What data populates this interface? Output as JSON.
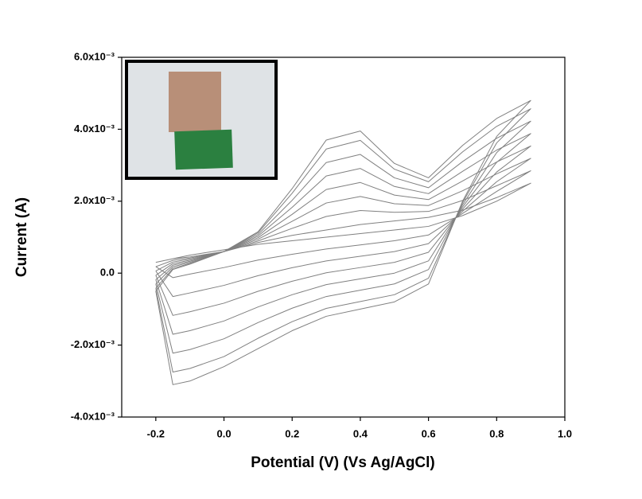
{
  "chart_data": {
    "type": "line",
    "x_label": "Potential (V) (Vs Ag/AgCl)",
    "y_label": "Current (A)",
    "xlim": [
      -0.3,
      1.0
    ],
    "ylim": [
      -0.004,
      0.006
    ],
    "xticks": [
      -0.2,
      {
        "value": 0,
        "label": "0.0"
      },
      0.2,
      0.4,
      0.6,
      0.8,
      {
        "value": 1,
        "label": "1.0"
      }
    ],
    "yticks": [
      {
        "value": -0.004,
        "label": "-4.0x10⁻³"
      },
      {
        "value": -0.002,
        "label": "-2.0x10⁻³"
      },
      {
        "value": 0,
        "label": "0.0"
      },
      {
        "value": 0.002,
        "label": "2.0x10⁻³"
      },
      {
        "value": 0.004,
        "label": "4.0x10⁻³"
      },
      {
        "value": 0.006,
        "label": "6.0x10⁻³"
      }
    ],
    "x": [
      -0.2,
      -0.15,
      -0.1,
      0,
      0.1,
      0.2,
      0.3,
      0.4,
      0.5,
      0.6,
      0.7,
      0.8,
      0.9,
      0.8,
      0.7,
      0.6,
      0.5,
      0.4,
      0.3,
      0.2,
      0.1,
      0,
      -0.1,
      -0.15,
      -0.2
    ],
    "series": [
      {
        "color": "#808080",
        "values": [
          0.0003,
          0.0004,
          0.00045,
          0.0006,
          0.00085,
          0.00105,
          0.0012,
          0.00135,
          0.00145,
          0.00155,
          0.00175,
          0.0021,
          0.0025,
          0.002,
          0.0016,
          0.0013,
          0.0012,
          0.0011,
          0.001,
          0.0009,
          0.0008,
          0.00065,
          0.0005,
          0.0004,
          0.0003
        ]
      },
      {
        "color": "#808080",
        "values": [
          0.00018,
          0.000355,
          0.00042,
          0.0006,
          0.000895,
          0.001245,
          0.001575,
          0.00174,
          0.00169,
          0.001715,
          0.00202,
          0.00243,
          0.002845,
          0.00227,
          0.00166,
          0.00106,
          0.0009,
          0.000785,
          0.00067,
          0.000525,
          0.000365,
          0.000155,
          -2.5e-05,
          -0.000125,
          0.00018
        ]
      },
      {
        "color": "#808080",
        "values": [
          6e-05,
          0.00031,
          0.00039,
          0.0006,
          0.00094,
          0.00144,
          0.00195,
          0.00213,
          0.00193,
          0.00188,
          0.00229,
          0.00276,
          0.00319,
          0.00254,
          0.00172,
          0.00082,
          0.0006,
          0.00047,
          0.00034,
          0.00015,
          -7e-05,
          -0.00034,
          -0.00055,
          -0.00065,
          6e-05
        ]
      },
      {
        "color": "#808080",
        "values": [
          -6e-05,
          0.000265,
          0.00036,
          0.0006,
          0.000985,
          0.001635,
          0.002325,
          0.00252,
          0.00217,
          0.002045,
          0.00256,
          0.00309,
          0.003535,
          0.00281,
          0.00178,
          0.00058,
          0.0003,
          0.000155,
          1e-05,
          -0.000225,
          -0.000505,
          -0.000835,
          -0.001075,
          -0.001175,
          -6e-05
        ]
      },
      {
        "color": "#808080",
        "values": [
          -0.00018,
          0.00022,
          0.00033,
          0.0006,
          0.00103,
          0.00183,
          0.0027,
          0.00291,
          0.00241,
          0.00221,
          0.00283,
          0.00342,
          0.00388,
          0.00308,
          0.00184,
          0.00034,
          0.0,
          -0.00016,
          -0.00032,
          -0.0006,
          -0.00094,
          -0.00133,
          -0.0016,
          -0.0017,
          -0.00018
        ]
      },
      {
        "color": "#808080",
        "values": [
          -0.0003,
          0.000175,
          0.0003,
          0.0006,
          0.001075,
          0.002025,
          0.003075,
          0.0033,
          0.00265,
          0.002375,
          0.0031,
          0.00375,
          0.004225,
          0.00335,
          0.0019,
          0.0001,
          -0.0003,
          -0.000475,
          -0.00065,
          -0.000975,
          -0.001375,
          -0.001825,
          -0.002125,
          -0.002225,
          -0.0003
        ]
      },
      {
        "color": "#808080",
        "values": [
          -0.00042,
          0.00013,
          0.00027,
          0.0006,
          0.00112,
          0.00222,
          0.00345,
          0.00369,
          0.00289,
          0.00254,
          0.00337,
          0.00408,
          0.00457,
          0.00362,
          0.00196,
          -0.00014,
          -0.0006,
          -0.00079,
          -0.00098,
          -0.00135,
          -0.00181,
          -0.00232,
          -0.00265,
          -0.00275,
          -0.00042
        ]
      },
      {
        "color": "#808080",
        "values": [
          -0.0005,
          0.0001,
          0.00025,
          0.0006,
          0.00115,
          0.00235,
          0.0037,
          0.00395,
          0.00305,
          0.00265,
          0.00355,
          0.0043,
          0.0048,
          0.0038,
          0.002,
          -0.0003,
          -0.0008,
          -0.001,
          -0.0012,
          -0.0016,
          -0.0021,
          -0.0026,
          -0.003,
          -0.0031,
          -0.0005
        ]
      }
    ]
  }
}
